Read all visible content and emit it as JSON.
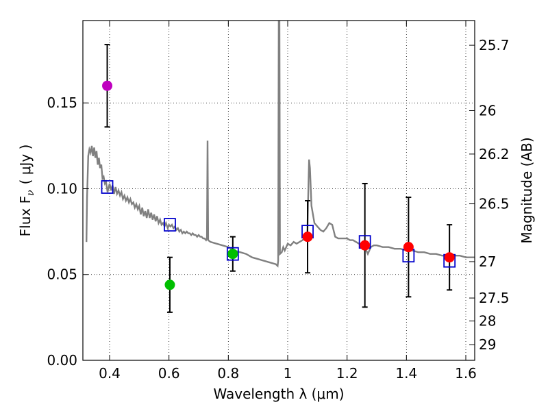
{
  "chart_data": {
    "type": "scatter",
    "xlabel": "Wavelength  λ (μm)",
    "ylabel": "Flux  F",
    "ylabel_sub": "ν",
    "ylabel_unit": "( μJy )",
    "y2label": "Magnitude (AB)",
    "xlim": [
      0.31,
      1.63
    ],
    "ylim": [
      0.0,
      0.198
    ],
    "grid": true,
    "x_ticks": [
      0.4,
      0.6,
      0.8,
      1.0,
      1.2,
      1.4,
      1.6
    ],
    "x_tick_labels": [
      "0.4",
      "0.6",
      "0.8",
      "1",
      "1.2",
      "1.4",
      "1.6"
    ],
    "y_ticks": [
      0.0,
      0.05,
      0.1,
      0.15
    ],
    "y_tick_labels": [
      "0.00",
      "0.05",
      "0.10",
      "0.15"
    ],
    "y2_ticks": [
      {
        "flux": 0.1836,
        "label": "25.7"
      },
      {
        "flux": 0.1455,
        "label": "26"
      },
      {
        "flux": 0.1202,
        "label": "26.2"
      },
      {
        "flux": 0.0912,
        "label": "26.5"
      },
      {
        "flux": 0.0575,
        "label": "27"
      },
      {
        "flux": 0.0363,
        "label": "27.5"
      },
      {
        "flux": 0.0229,
        "label": "28"
      },
      {
        "flux": 0.0091,
        "label": "29"
      }
    ],
    "observed_points": [
      {
        "x": 0.392,
        "y": 0.16,
        "yerr_low": 0.024,
        "yerr_high": 0.024,
        "color": "#bf00bf"
      },
      {
        "x": 0.603,
        "y": 0.044,
        "yerr_low": 0.016,
        "yerr_high": 0.016,
        "color": "#00bf00"
      },
      {
        "x": 0.815,
        "y": 0.062,
        "yerr_low": 0.01,
        "yerr_high": 0.01,
        "color": "#00bf00"
      },
      {
        "x": 1.067,
        "y": 0.072,
        "yerr_low": 0.021,
        "yerr_high": 0.021,
        "color": "#ff0000"
      },
      {
        "x": 1.26,
        "y": 0.067,
        "yerr_low": 0.036,
        "yerr_high": 0.036,
        "color": "#ff0000"
      },
      {
        "x": 1.407,
        "y": 0.066,
        "yerr_low": 0.029,
        "yerr_high": 0.029,
        "color": "#ff0000"
      },
      {
        "x": 1.545,
        "y": 0.06,
        "yerr_low": 0.019,
        "yerr_high": 0.019,
        "color": "#ff0000"
      }
    ],
    "model_points": [
      {
        "x": 0.392,
        "y": 0.101
      },
      {
        "x": 0.603,
        "y": 0.079
      },
      {
        "x": 0.815,
        "y": 0.062
      },
      {
        "x": 1.067,
        "y": 0.075
      },
      {
        "x": 1.26,
        "y": 0.069
      },
      {
        "x": 1.407,
        "y": 0.061
      },
      {
        "x": 1.545,
        "y": 0.058
      }
    ],
    "model_spectrum": [
      [
        0.322,
        0.069
      ],
      [
        0.324,
        0.095
      ],
      [
        0.328,
        0.119
      ],
      [
        0.332,
        0.123
      ],
      [
        0.336,
        0.121
      ],
      [
        0.34,
        0.125
      ],
      [
        0.344,
        0.119
      ],
      [
        0.348,
        0.124
      ],
      [
        0.352,
        0.118
      ],
      [
        0.356,
        0.122
      ],
      [
        0.36,
        0.114
      ],
      [
        0.364,
        0.118
      ],
      [
        0.368,
        0.112
      ],
      [
        0.372,
        0.114
      ],
      [
        0.376,
        0.106
      ],
      [
        0.38,
        0.107
      ],
      [
        0.384,
        0.103
      ],
      [
        0.388,
        0.104
      ],
      [
        0.393,
        0.098
      ],
      [
        0.4,
        0.103
      ],
      [
        0.405,
        0.099
      ],
      [
        0.41,
        0.102
      ],
      [
        0.415,
        0.097
      ],
      [
        0.42,
        0.101
      ],
      [
        0.425,
        0.097
      ],
      [
        0.43,
        0.099
      ],
      [
        0.435,
        0.096
      ],
      [
        0.44,
        0.098
      ],
      [
        0.445,
        0.094
      ],
      [
        0.45,
        0.096
      ],
      [
        0.455,
        0.093
      ],
      [
        0.46,
        0.095
      ],
      [
        0.465,
        0.092
      ],
      [
        0.47,
        0.094
      ],
      [
        0.475,
        0.091
      ],
      [
        0.48,
        0.092
      ],
      [
        0.485,
        0.089
      ],
      [
        0.49,
        0.091
      ],
      [
        0.495,
        0.088
      ],
      [
        0.5,
        0.09
      ],
      [
        0.505,
        0.085
      ],
      [
        0.51,
        0.089
      ],
      [
        0.515,
        0.084
      ],
      [
        0.52,
        0.087
      ],
      [
        0.525,
        0.083
      ],
      [
        0.53,
        0.088
      ],
      [
        0.535,
        0.083
      ],
      [
        0.54,
        0.086
      ],
      [
        0.545,
        0.082
      ],
      [
        0.55,
        0.085
      ],
      [
        0.555,
        0.081
      ],
      [
        0.56,
        0.084
      ],
      [
        0.565,
        0.08
      ],
      [
        0.57,
        0.082
      ],
      [
        0.575,
        0.079
      ],
      [
        0.58,
        0.08
      ],
      [
        0.585,
        0.078
      ],
      [
        0.59,
        0.08
      ],
      [
        0.596,
        0.077
      ],
      [
        0.6,
        0.079
      ],
      [
        0.605,
        0.078
      ],
      [
        0.61,
        0.079
      ],
      [
        0.615,
        0.077
      ],
      [
        0.62,
        0.078
      ],
      [
        0.625,
        0.076
      ],
      [
        0.63,
        0.077
      ],
      [
        0.635,
        0.075
      ],
      [
        0.64,
        0.076
      ],
      [
        0.645,
        0.074
      ],
      [
        0.65,
        0.075
      ],
      [
        0.655,
        0.074
      ],
      [
        0.66,
        0.075
      ],
      [
        0.665,
        0.074
      ],
      [
        0.67,
        0.074
      ],
      [
        0.675,
        0.073
      ],
      [
        0.68,
        0.074
      ],
      [
        0.685,
        0.073
      ],
      [
        0.69,
        0.073
      ],
      [
        0.695,
        0.072
      ],
      [
        0.7,
        0.073
      ],
      [
        0.705,
        0.072
      ],
      [
        0.71,
        0.072
      ],
      [
        0.715,
        0.071
      ],
      [
        0.72,
        0.071
      ],
      [
        0.725,
        0.07
      ],
      [
        0.728,
        0.071
      ],
      [
        0.73,
        0.128
      ],
      [
        0.732,
        0.07
      ],
      [
        0.74,
        0.069
      ],
      [
        0.76,
        0.068
      ],
      [
        0.78,
        0.067
      ],
      [
        0.8,
        0.066
      ],
      [
        0.82,
        0.064
      ],
      [
        0.84,
        0.063
      ],
      [
        0.86,
        0.062
      ],
      [
        0.88,
        0.06
      ],
      [
        0.9,
        0.059
      ],
      [
        0.92,
        0.058
      ],
      [
        0.94,
        0.057
      ],
      [
        0.96,
        0.056
      ],
      [
        0.966,
        0.055
      ],
      [
        0.968,
        0.058
      ],
      [
        0.97,
        0.21
      ],
      [
        0.972,
        0.21
      ],
      [
        0.974,
        0.062
      ],
      [
        0.98,
        0.063
      ],
      [
        0.985,
        0.066
      ],
      [
        0.99,
        0.064
      ],
      [
        1.0,
        0.068
      ],
      [
        1.01,
        0.067
      ],
      [
        1.02,
        0.069
      ],
      [
        1.03,
        0.068
      ],
      [
        1.04,
        0.069
      ],
      [
        1.05,
        0.07
      ],
      [
        1.06,
        0.072
      ],
      [
        1.066,
        0.073
      ],
      [
        1.072,
        0.117
      ],
      [
        1.075,
        0.112
      ],
      [
        1.08,
        0.09
      ],
      [
        1.09,
        0.08
      ],
      [
        1.1,
        0.078
      ],
      [
        1.11,
        0.076
      ],
      [
        1.12,
        0.075
      ],
      [
        1.13,
        0.077
      ],
      [
        1.14,
        0.08
      ],
      [
        1.15,
        0.079
      ],
      [
        1.16,
        0.072
      ],
      [
        1.17,
        0.071
      ],
      [
        1.18,
        0.071
      ],
      [
        1.19,
        0.071
      ],
      [
        1.2,
        0.071
      ],
      [
        1.21,
        0.07
      ],
      [
        1.22,
        0.07
      ],
      [
        1.23,
        0.069
      ],
      [
        1.24,
        0.068
      ],
      [
        1.25,
        0.067
      ],
      [
        1.26,
        0.067
      ],
      [
        1.265,
        0.064
      ],
      [
        1.27,
        0.062
      ],
      [
        1.28,
        0.066
      ],
      [
        1.29,
        0.067
      ],
      [
        1.3,
        0.067
      ],
      [
        1.32,
        0.066
      ],
      [
        1.34,
        0.066
      ],
      [
        1.36,
        0.065
      ],
      [
        1.38,
        0.065
      ],
      [
        1.4,
        0.064
      ],
      [
        1.42,
        0.064
      ],
      [
        1.44,
        0.063
      ],
      [
        1.46,
        0.063
      ],
      [
        1.48,
        0.062
      ],
      [
        1.5,
        0.062
      ],
      [
        1.52,
        0.061
      ],
      [
        1.54,
        0.061
      ],
      [
        1.56,
        0.061
      ],
      [
        1.58,
        0.061
      ],
      [
        1.6,
        0.06
      ],
      [
        1.63,
        0.06
      ]
    ]
  }
}
